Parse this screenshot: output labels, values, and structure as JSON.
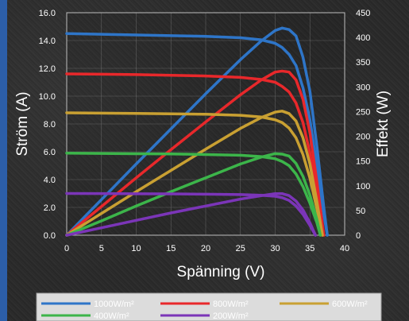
{
  "chart_data": {
    "type": "line",
    "title": "",
    "xlabel": "Spänning (V)",
    "ylabel_left": "Ström (A)",
    "ylabel_right": "Effekt (W)",
    "xlim": [
      0,
      40
    ],
    "ylim_left": [
      0,
      16
    ],
    "ylim_right": [
      0,
      450
    ],
    "x_ticks": [
      "0",
      "5",
      "10",
      "15",
      "20",
      "25",
      "30",
      "35",
      "40"
    ],
    "y_left_ticks": [
      "0.0",
      "2.0",
      "4.0",
      "6.0",
      "8.0",
      "10.0",
      "12.0",
      "14.0",
      "16.0"
    ],
    "y_right_ticks": [
      "0",
      "50",
      "100",
      "150",
      "200",
      "250",
      "300",
      "350",
      "400",
      "450"
    ],
    "grid": true,
    "legend_position": "bottom",
    "series": [
      {
        "name": "1000W/m²",
        "color": "#2e75c8",
        "current": {
          "x": [
            0,
            5,
            10,
            15,
            20,
            25,
            28,
            30,
            31,
            32,
            33,
            34,
            35,
            36,
            37,
            37.5
          ],
          "y": [
            14.5,
            14.45,
            14.4,
            14.35,
            14.3,
            14.2,
            14.05,
            13.8,
            13.5,
            13.0,
            12.2,
            10.6,
            8.3,
            5.0,
            1.5,
            0
          ]
        },
        "power": {
          "x": [
            0,
            5,
            10,
            15,
            20,
            25,
            28,
            30,
            31,
            32,
            33,
            34,
            35,
            36,
            37,
            37.5
          ],
          "y": [
            0,
            72,
            144,
            215,
            286,
            355,
            393,
            414,
            419,
            416,
            403,
            360,
            291,
            180,
            56,
            0
          ]
        }
      },
      {
        "name": "800W/m²",
        "color": "#e8282b",
        "current": {
          "x": [
            0,
            5,
            10,
            15,
            20,
            25,
            28,
            30,
            31,
            32,
            33,
            34,
            35,
            36,
            37
          ],
          "y": [
            11.6,
            11.58,
            11.55,
            11.5,
            11.45,
            11.35,
            11.2,
            11.0,
            10.7,
            10.3,
            9.5,
            8.1,
            5.9,
            3.0,
            0
          ]
        },
        "power": {
          "x": [
            0,
            5,
            10,
            15,
            20,
            25,
            28,
            30,
            31,
            32,
            33,
            34,
            35,
            36,
            37
          ],
          "y": [
            0,
            58,
            116,
            173,
            229,
            284,
            314,
            330,
            332,
            330,
            314,
            275,
            207,
            108,
            0
          ]
        }
      },
      {
        "name": "600W/m²",
        "color": "#c9a032",
        "current": {
          "x": [
            0,
            5,
            10,
            15,
            20,
            25,
            28,
            30,
            31,
            32,
            33,
            34,
            35,
            36,
            36.8
          ],
          "y": [
            8.8,
            8.78,
            8.76,
            8.73,
            8.7,
            8.62,
            8.5,
            8.3,
            8.1,
            7.7,
            7.0,
            5.8,
            4.1,
            1.9,
            0
          ]
        },
        "power": {
          "x": [
            0,
            5,
            10,
            15,
            20,
            25,
            28,
            30,
            31,
            32,
            33,
            34,
            35,
            36,
            36.8
          ],
          "y": [
            0,
            44,
            88,
            131,
            174,
            216,
            238,
            249,
            251,
            246,
            231,
            197,
            144,
            68,
            0
          ]
        }
      },
      {
        "name": "400W/m²",
        "color": "#3cb54a",
        "current": {
          "x": [
            0,
            5,
            10,
            15,
            20,
            25,
            28,
            30,
            31,
            32,
            33,
            34,
            35,
            36,
            36.5
          ],
          "y": [
            5.9,
            5.88,
            5.86,
            5.84,
            5.8,
            5.75,
            5.65,
            5.5,
            5.3,
            5.0,
            4.4,
            3.5,
            2.3,
            0.9,
            0
          ]
        },
        "power": {
          "x": [
            0,
            5,
            10,
            15,
            20,
            25,
            28,
            30,
            31,
            32,
            33,
            34,
            35,
            36,
            36.5
          ],
          "y": [
            0,
            29,
            59,
            88,
            116,
            144,
            158,
            165,
            164,
            160,
            145,
            119,
            81,
            32,
            0
          ]
        }
      },
      {
        "name": "200W/m²",
        "color": "#7b35b8",
        "current": {
          "x": [
            0,
            5,
            10,
            15,
            20,
            25,
            28,
            30,
            31,
            32,
            33,
            34,
            35,
            35.8
          ],
          "y": [
            3.0,
            2.99,
            2.98,
            2.97,
            2.95,
            2.92,
            2.87,
            2.8,
            2.7,
            2.5,
            2.1,
            1.5,
            0.7,
            0
          ]
        },
        "power": {
          "x": [
            0,
            5,
            10,
            15,
            20,
            25,
            28,
            30,
            31,
            32,
            33,
            34,
            35,
            35.8
          ],
          "y": [
            0,
            15,
            30,
            45,
            59,
            73,
            80,
            84,
            84,
            80,
            69,
            51,
            25,
            0
          ]
        }
      }
    ]
  }
}
